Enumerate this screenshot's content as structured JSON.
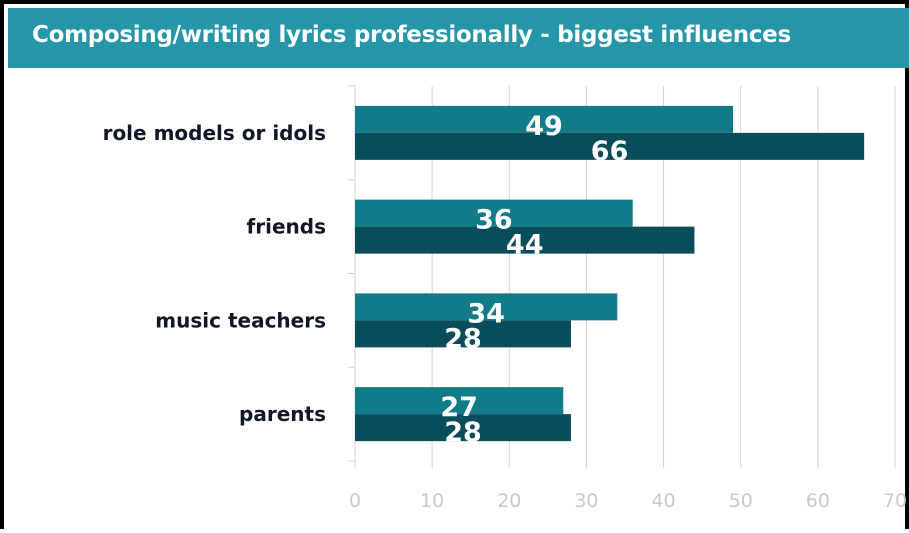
{
  "header": {
    "title": "Composing/writing lyrics professionally - biggest influences"
  },
  "colors": {
    "title_bg": "#2596a8",
    "series1": "#127b8a",
    "series2": "#0a4d5a",
    "grid": "#d4d4d4",
    "ticks": "#c9c9c9"
  },
  "chart_data": {
    "type": "bar",
    "orientation": "horizontal",
    "title": "Composing/writing lyrics professionally - biggest influences",
    "categories": [
      "role models or idols",
      "friends",
      "music teachers",
      "parents"
    ],
    "series": [
      {
        "values": [
          49,
          36,
          34,
          27
        ]
      },
      {
        "values": [
          66,
          44,
          28,
          28
        ]
      }
    ],
    "xlim": [
      0,
      70
    ],
    "xticks": [
      "0",
      "10",
      "20",
      "30",
      "40",
      "50",
      "60",
      "70"
    ],
    "grid": true,
    "legend": "none"
  }
}
